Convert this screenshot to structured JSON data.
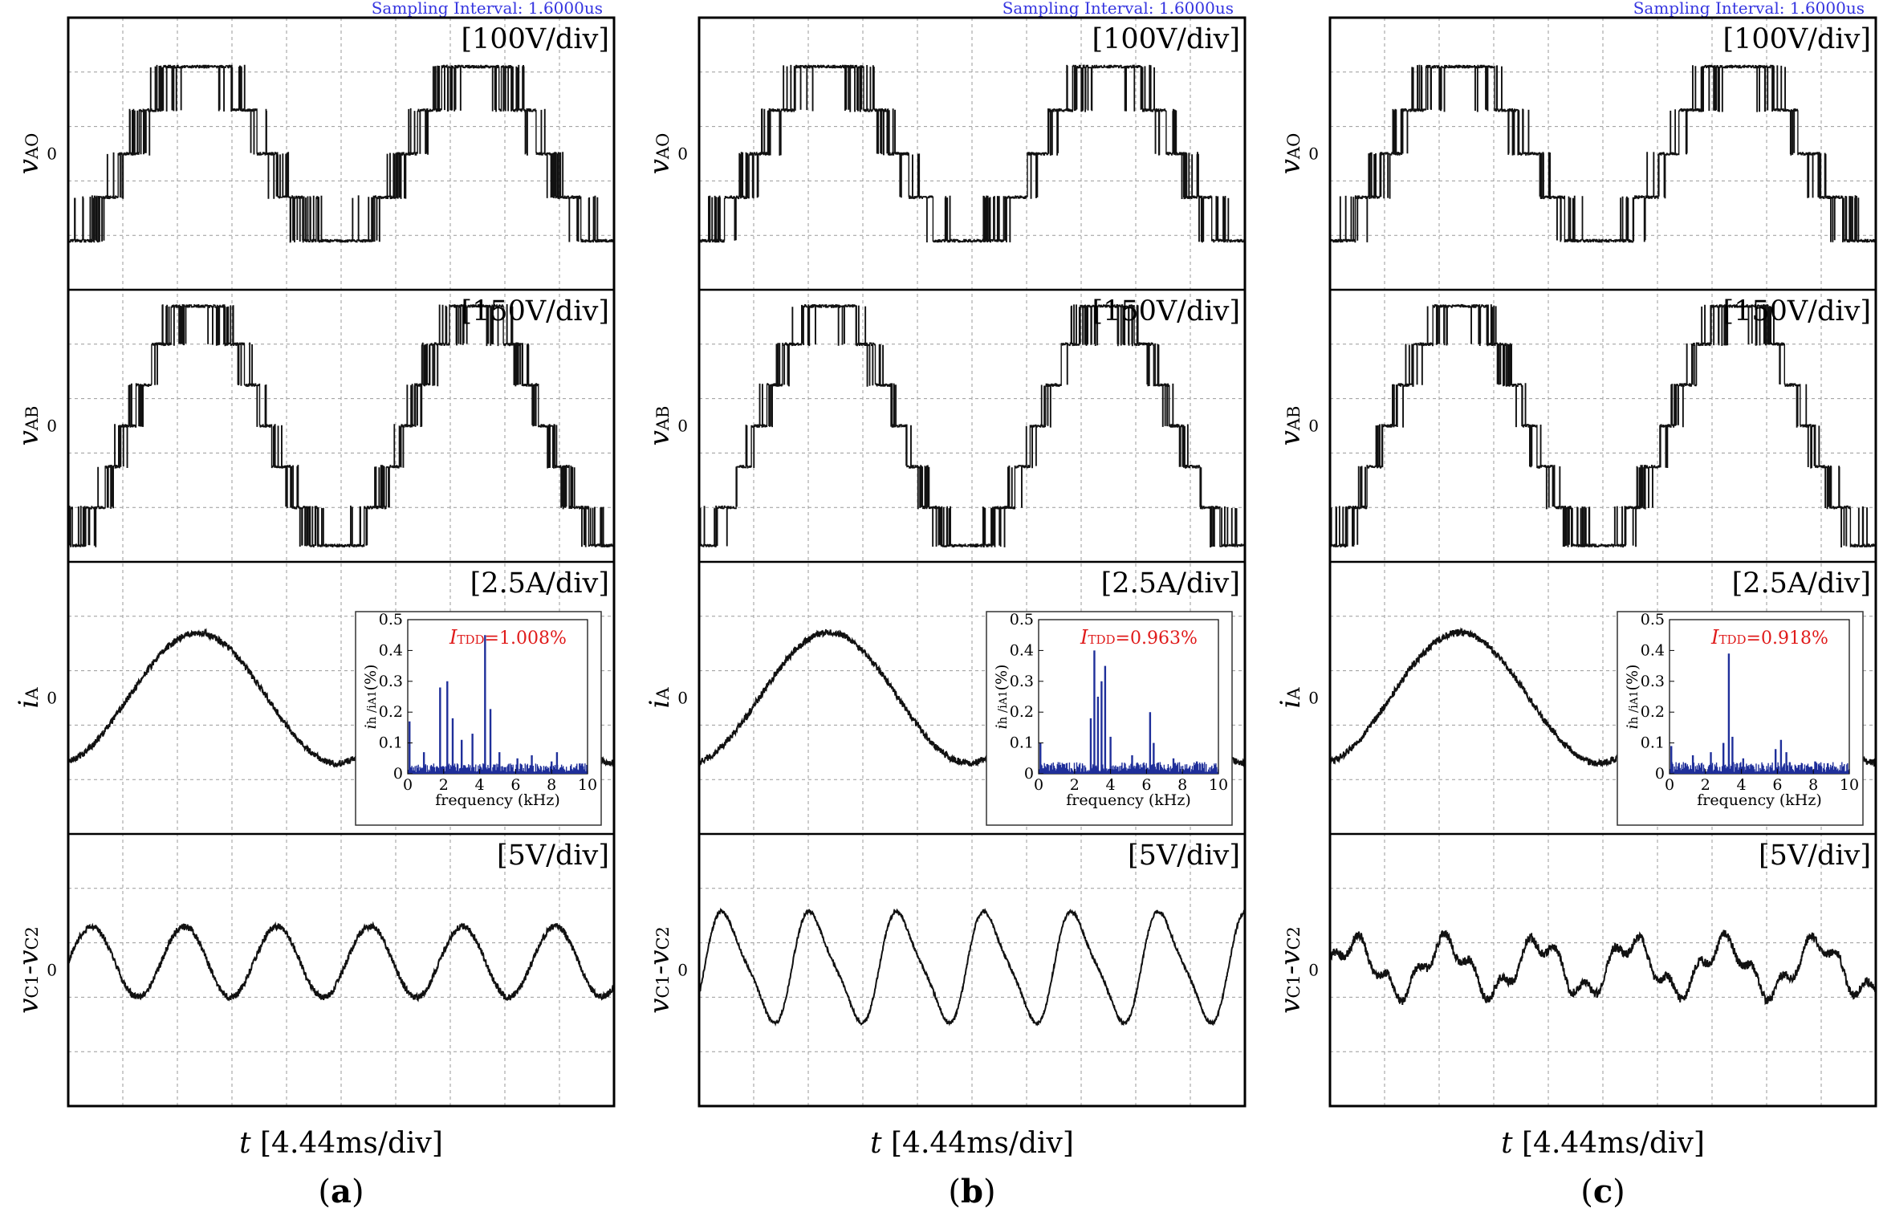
{
  "figure": {
    "sampling_interval": "Sampling Interval:  1.6000us",
    "x_axis_label_t": "t",
    "x_axis_label_rest": " [4.44ms/div]",
    "colors": {
      "trace": "#111111",
      "grid": "#9a9a9a",
      "sampling": "#3535e0",
      "bars": "#1f2f9a",
      "thd": "#e01b1b"
    }
  },
  "chart_data": [
    {
      "panel": "a",
      "type": "line",
      "title": "(a)",
      "xlabel": "t [4.44ms/div]",
      "divisions": {
        "x": 10,
        "y_per_channel": 5
      },
      "channels": [
        {
          "name": "v_AO",
          "label_main": "v",
          "label_sub": "AO",
          "scale": "[100V/div]",
          "zero": "0",
          "waveform": "multilevel-pwm",
          "levels": [
            -1.6,
            -0.8,
            0,
            0.8,
            1.6
          ],
          "period_div": 5.1,
          "phase_div": 1.1
        },
        {
          "name": "v_AB",
          "label_main": "v",
          "label_sub": "AB",
          "scale": "[150V/div]",
          "zero": "0",
          "waveform": "staircase-pwm",
          "levels": [
            -2.2,
            -1.5,
            -0.75,
            0,
            0.75,
            1.5,
            2.2
          ],
          "period_div": 5.1,
          "phase_div": 1.1
        },
        {
          "name": "i_A",
          "label_main": "i",
          "label_sub": "A",
          "scale": "[2.5A/div]",
          "zero": "0",
          "waveform": "sine",
          "amplitude_div": 1.2,
          "offset_div": 0,
          "period_div": 5.1,
          "phase_div": 1.1
        },
        {
          "name": "v_C1-v_C2",
          "label_main": "v",
          "label_sub": "C1",
          "label_mid": "-v",
          "label_sub2": "C2",
          "scale": "[5V/div]",
          "zero": "0",
          "waveform": "sine",
          "amplitude_div": 0.65,
          "offset_div": 0.15,
          "period_div": 1.7,
          "phase_div": 0
        }
      ],
      "spectrum": {
        "thd_main": "I",
        "thd_sub": "TDD",
        "thd_value": "=1.008%",
        "xlabel": "frequency (kHz)",
        "ylabel": "i_h/i_A1(%)",
        "ylabel_main": "i",
        "ylabel_text": "h /i",
        "ylabel_sub": "A1",
        "ylabel_tail": "(%)",
        "xlim": [
          0,
          10
        ],
        "ylim": [
          0,
          0.5
        ],
        "xticks": [
          "0",
          "2",
          "4",
          "6",
          "8",
          "10"
        ],
        "yticks": [
          "0",
          "0.1",
          "0.2",
          "0.3",
          "0.4",
          "0.5"
        ],
        "peaks_khz": [
          0.1,
          0.9,
          1.8,
          2.2,
          2.5,
          3.0,
          3.6,
          4.3,
          4.6,
          5.1,
          6.1,
          6.9,
          8.0,
          8.3
        ],
        "peaks_pct": [
          0.17,
          0.07,
          0.28,
          0.3,
          0.18,
          0.11,
          0.13,
          0.45,
          0.21,
          0.07,
          0.05,
          0.06,
          0.04,
          0.07
        ],
        "floor_pct": 0.018
      }
    },
    {
      "panel": "b",
      "type": "line",
      "title": "(b)",
      "xlabel": "t [4.44ms/div]",
      "divisions": {
        "x": 10,
        "y_per_channel": 5
      },
      "channels": [
        {
          "name": "v_AO",
          "label_main": "v",
          "label_sub": "AO",
          "scale": "[100V/div]",
          "zero": "0",
          "waveform": "multilevel-pwm",
          "levels": [
            -1.6,
            -0.8,
            0,
            0.8,
            1.6
          ],
          "period_div": 5.1,
          "phase_div": 1.1
        },
        {
          "name": "v_AB",
          "label_main": "v",
          "label_sub": "AB",
          "scale": "[150V/div]",
          "zero": "0",
          "waveform": "staircase-pwm",
          "levels": [
            -2.2,
            -1.5,
            -0.75,
            0,
            0.75,
            1.5,
            2.2
          ],
          "period_div": 5.1,
          "phase_div": 1.1
        },
        {
          "name": "i_A",
          "label_main": "i",
          "label_sub": "A",
          "scale": "[2.5A/div]",
          "zero": "0",
          "waveform": "sine",
          "amplitude_div": 1.2,
          "offset_div": 0,
          "period_div": 5.1,
          "phase_div": 1.1
        },
        {
          "name": "v_C1-v_C2",
          "label_main": "v",
          "label_sub": "C1",
          "label_mid": "-v",
          "label_sub2": "C2",
          "scale": "[5V/div]",
          "zero": "0",
          "waveform": "sawtooth-sine",
          "amplitude_div": 0.95,
          "offset_div": 0.05,
          "period_div": 1.6,
          "phase_div": 0.1
        }
      ],
      "spectrum": {
        "thd_main": "I",
        "thd_sub": "TDD",
        "thd_value": "=0.963%",
        "xlabel": "frequency (kHz)",
        "ylabel": "i_h/i_A1(%)",
        "ylabel_main": "i",
        "ylabel_text": "h /i",
        "ylabel_sub": "A1",
        "ylabel_tail": "(%)",
        "xlim": [
          0,
          10
        ],
        "ylim": [
          0,
          0.5
        ],
        "xticks": [
          "0",
          "2",
          "4",
          "6",
          "8",
          "10"
        ],
        "yticks": [
          "0",
          "0.1",
          "0.2",
          "0.3",
          "0.4",
          "0.5"
        ],
        "peaks_khz": [
          0.1,
          2.9,
          3.1,
          3.3,
          3.5,
          3.7,
          4.0,
          5.2,
          6.2,
          6.4,
          7.5,
          8.8
        ],
        "peaks_pct": [
          0.1,
          0.18,
          0.4,
          0.25,
          0.3,
          0.35,
          0.12,
          0.06,
          0.2,
          0.1,
          0.05,
          0.04
        ],
        "floor_pct": 0.02
      }
    },
    {
      "panel": "c",
      "type": "line",
      "title": "(c)",
      "xlabel": "t [4.44ms/div]",
      "divisions": {
        "x": 10,
        "y_per_channel": 5
      },
      "channels": [
        {
          "name": "v_AO",
          "label_main": "v",
          "label_sub": "AO",
          "scale": "[100V/div]",
          "zero": "0",
          "waveform": "multilevel-pwm",
          "levels": [
            -1.6,
            -0.8,
            0,
            0.8,
            1.6
          ],
          "period_div": 5.1,
          "phase_div": 1.1
        },
        {
          "name": "v_AB",
          "label_main": "v",
          "label_sub": "AB",
          "scale": "[150V/div]",
          "zero": "0",
          "waveform": "staircase-pwm",
          "levels": [
            -2.2,
            -1.5,
            -0.75,
            0,
            0.75,
            1.5,
            2.2
          ],
          "period_div": 5.1,
          "phase_div": 1.1
        },
        {
          "name": "i_A",
          "label_main": "i",
          "label_sub": "A",
          "scale": "[2.5A/div]",
          "zero": "0",
          "waveform": "sine",
          "amplitude_div": 1.2,
          "offset_div": 0,
          "period_div": 5.1,
          "phase_div": 1.1
        },
        {
          "name": "v_C1-v_C2",
          "label_main": "v",
          "label_sub": "C1",
          "label_mid": "-v",
          "label_sub2": "C2",
          "scale": "[5V/div]",
          "zero": "0",
          "waveform": "noisy-ripple",
          "amplitude_div": 0.45,
          "offset_div": 0.05,
          "period_div": 1.7,
          "phase_div": 0
        }
      ],
      "spectrum": {
        "thd_main": "I",
        "thd_sub": "TDD",
        "thd_value": "=0.918%",
        "xlabel": "frequency (kHz)",
        "ylabel": "i_h/i_A1(%)",
        "ylabel_main": "i",
        "ylabel_text": "h /i",
        "ylabel_sub": "A1",
        "ylabel_tail": "(%)",
        "xlim": [
          0,
          10
        ],
        "ylim": [
          0,
          0.5
        ],
        "xticks": [
          "0",
          "2",
          "4",
          "6",
          "8",
          "10"
        ],
        "yticks": [
          "0",
          "0.1",
          "0.2",
          "0.3",
          "0.4",
          "0.5"
        ],
        "peaks_khz": [
          0.1,
          1.3,
          2.3,
          3.0,
          3.3,
          3.5,
          4.1,
          5.9,
          6.2,
          6.5,
          8.1
        ],
        "peaks_pct": [
          0.09,
          0.06,
          0.07,
          0.1,
          0.39,
          0.12,
          0.05,
          0.08,
          0.11,
          0.07,
          0.04
        ],
        "floor_pct": 0.02
      }
    }
  ]
}
